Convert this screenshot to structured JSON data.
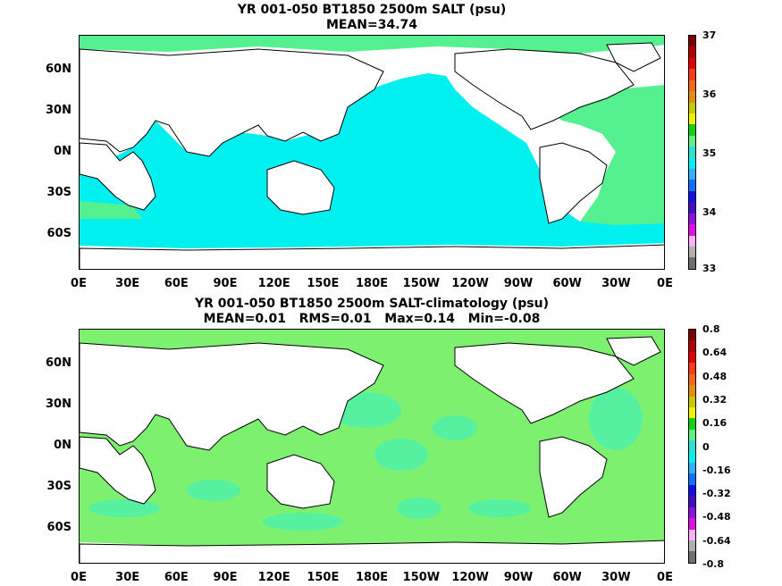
{
  "panels": [
    {
      "title_line1": "YR 001-050 BT1850 2500m SALT (psu)",
      "title_line2": "MEAN=34.74",
      "colorbar_labels": [
        "37",
        "36",
        "35",
        "34",
        "33"
      ]
    },
    {
      "title_line1": "YR 001-050 BT1850 2500m SALT-climatology (psu)",
      "title_line2": "MEAN=0.01   RMS=0.01   Max=0.14   Min=-0.08",
      "colorbar_labels": [
        "0.8",
        "0.64",
        "0.48",
        "0.32",
        "0.16",
        "0",
        "-0.16",
        "-0.32",
        "-0.48",
        "-0.64",
        "-0.8"
      ]
    }
  ],
  "lat_labels": [
    "60N",
    "30N",
    "0N",
    "30S",
    "60S"
  ],
  "lon_labels": [
    "0E",
    "30E",
    "60E",
    "90E",
    "120E",
    "150E",
    "180E",
    "150W",
    "120W",
    "90W",
    "60W",
    "30W",
    "0E"
  ],
  "colors": {
    "ocean_salt": "#00f0f0",
    "atlantic_salt": "#55f090",
    "anomaly_green": "#7ef070",
    "anomaly_cyan": "#55f0a0",
    "land": "#ffffff",
    "coast": "#000000"
  },
  "colorbar_colors": [
    "#7d0000",
    "#b00000",
    "#e00000",
    "#ff3a1a",
    "#f06a1a",
    "#e09010",
    "#c8c800",
    "#f0f000",
    "#10d010",
    "#60f080",
    "#30e0d0",
    "#00f0f0",
    "#30b0ff",
    "#1070ff",
    "#1010e0",
    "#4010c0",
    "#9010e0",
    "#e010e0",
    "#ffb0ff",
    "#b0b0b0",
    "#707070"
  ]
}
